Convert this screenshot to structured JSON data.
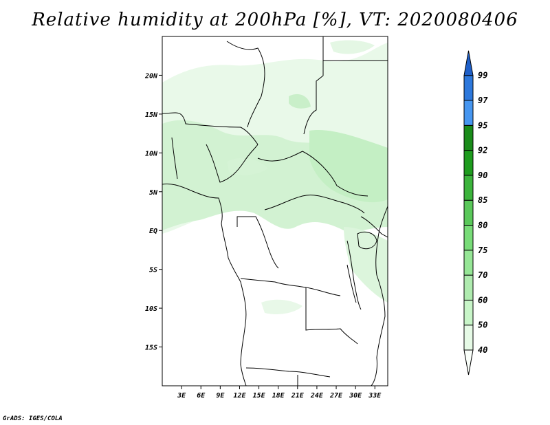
{
  "title": "Relative humidity at 200hPa [%], VT: 2020080406",
  "credit": "GrADS: IGES/COLA",
  "map": {
    "lat_labels": [
      "20N",
      "15N",
      "10N",
      "5N",
      "EQ",
      "5S",
      "10S",
      "15S"
    ],
    "lat_values": [
      20,
      15,
      10,
      5,
      0,
      -5,
      -10,
      -15
    ],
    "lon_labels": [
      "3E",
      "6E",
      "9E",
      "12E",
      "15E",
      "18E",
      "21E",
      "24E",
      "27E",
      "30E",
      "33E"
    ],
    "lon_values": [
      3,
      6,
      9,
      12,
      15,
      18,
      21,
      24,
      27,
      30,
      33
    ],
    "lon_range": [
      0,
      35
    ],
    "lat_range": [
      -20,
      25
    ]
  },
  "colorbar": {
    "levels": [
      "40",
      "50",
      "60",
      "70",
      "75",
      "80",
      "85",
      "90",
      "92",
      "95",
      "97",
      "99"
    ],
    "colors": [
      "#fafffa",
      "#e6fae6",
      "#c8f5c8",
      "#afebaf",
      "#96e696",
      "#78dc78",
      "#5ac85a",
      "#3cb43c",
      "#1e9c1e",
      "#1a8c1a",
      "#4696f0",
      "#2d78dc",
      "#1e5fc8"
    ]
  }
}
